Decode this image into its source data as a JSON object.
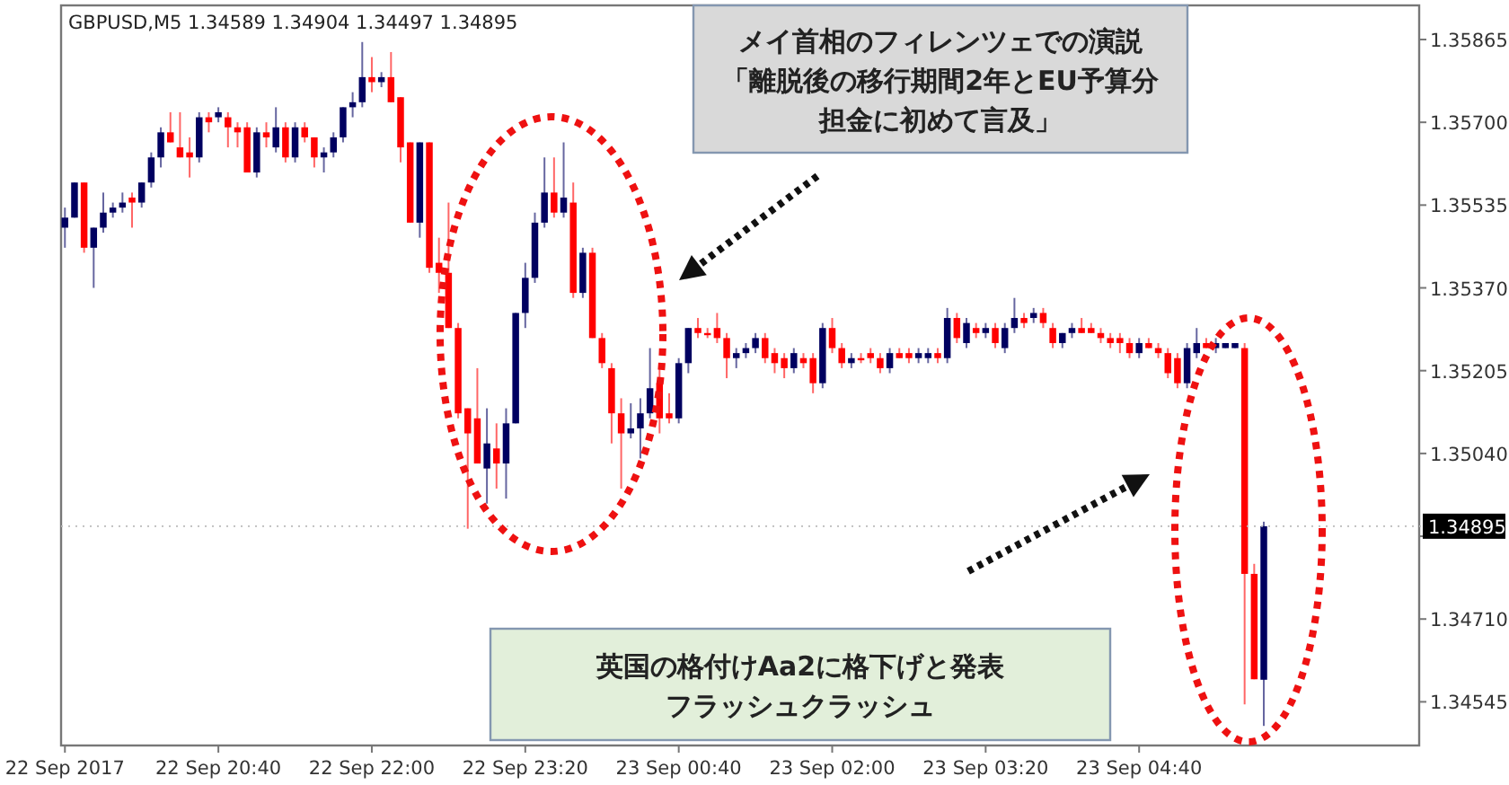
{
  "chart_data": {
    "type": "candlestick",
    "title": "GBPUSD,M5  1.34589 1.34904 1.34497 1.34895",
    "annotations": [
      "メイ首相のフィレンツェでの演説「離脱後の移行期間2年とEU予算分担金に初めて言及」",
      "英国の格付けAa2に格下げと発表フラッシュクラッシュ"
    ],
    "xlim": [
      "2017-09-22T19:18",
      "2017-09-23T07:06"
    ],
    "xticks": [
      {
        "value": "2017-09-22T19:20",
        "label": "22 Sep 2017"
      },
      {
        "value": "2017-09-22T20:40",
        "label": "22 Sep 20:40"
      },
      {
        "value": "2017-09-22T22:00",
        "label": "22 Sep 22:00"
      },
      {
        "value": "2017-09-22T23:20",
        "label": "22 Sep 23:20"
      },
      {
        "value": "2017-09-23T00:40",
        "label": "23 Sep 00:40"
      },
      {
        "value": "2017-09-23T02:00",
        "label": "23 Sep 02:00"
      },
      {
        "value": "2017-09-23T03:20",
        "label": "23 Sep 03:20"
      },
      {
        "value": "2017-09-23T04:40",
        "label": "23 Sep 04:40"
      }
    ],
    "ylim": [
      1.34458,
      1.35933
    ],
    "yticks": [
      {
        "value": 1.34545,
        "label": "1.34545"
      },
      {
        "value": 1.3471,
        "label": "1.34710"
      },
      {
        "value": 1.34875,
        "label": null
      },
      {
        "value": 1.3504,
        "label": "1.35040"
      },
      {
        "value": 1.35205,
        "label": "1.35205"
      },
      {
        "value": 1.3537,
        "label": "1.35370"
      },
      {
        "value": 1.35535,
        "label": "1.35535"
      },
      {
        "value": 1.357,
        "label": "1.35700"
      },
      {
        "value": 1.35865,
        "label": "1.35865"
      }
    ],
    "ref_lines": [
      {
        "axis": "y",
        "value": 1.34895,
        "label": "1.34895",
        "color": "#bbbbbb",
        "line_style": "dotted"
      }
    ],
    "x": [
      "2017-09-22T19:20",
      "2017-09-22T19:25",
      "2017-09-22T19:30",
      "2017-09-22T19:35",
      "2017-09-22T19:40",
      "2017-09-22T19:45",
      "2017-09-22T19:50",
      "2017-09-22T19:55",
      "2017-09-22T20:00",
      "2017-09-22T20:05",
      "2017-09-22T20:10",
      "2017-09-22T20:15",
      "2017-09-22T20:20",
      "2017-09-22T20:25",
      "2017-09-22T20:30",
      "2017-09-22T20:35",
      "2017-09-22T20:40",
      "2017-09-22T20:45",
      "2017-09-22T20:50",
      "2017-09-22T20:55",
      "2017-09-22T21:00",
      "2017-09-22T21:05",
      "2017-09-22T21:10",
      "2017-09-22T21:15",
      "2017-09-22T21:20",
      "2017-09-22T21:25",
      "2017-09-22T21:30",
      "2017-09-22T21:35",
      "2017-09-22T21:40",
      "2017-09-22T21:45",
      "2017-09-22T21:50",
      "2017-09-22T21:55",
      "2017-09-22T22:00",
      "2017-09-22T22:05",
      "2017-09-22T22:10",
      "2017-09-22T22:15",
      "2017-09-22T22:20",
      "2017-09-22T22:25",
      "2017-09-22T22:30",
      "2017-09-22T22:35",
      "2017-09-22T22:40",
      "2017-09-22T22:45",
      "2017-09-22T22:50",
      "2017-09-22T22:55",
      "2017-09-22T23:00",
      "2017-09-22T23:05",
      "2017-09-22T23:10",
      "2017-09-22T23:15",
      "2017-09-22T23:20",
      "2017-09-22T23:25",
      "2017-09-22T23:30",
      "2017-09-22T23:35",
      "2017-09-22T23:40",
      "2017-09-22T23:45",
      "2017-09-22T23:50",
      "2017-09-22T23:55",
      "2017-09-23T00:00",
      "2017-09-23T00:05",
      "2017-09-23T00:10",
      "2017-09-23T00:15",
      "2017-09-23T00:20",
      "2017-09-23T00:25",
      "2017-09-23T00:30",
      "2017-09-23T00:35",
      "2017-09-23T00:40",
      "2017-09-23T00:45",
      "2017-09-23T00:50",
      "2017-09-23T00:55",
      "2017-09-23T01:00",
      "2017-09-23T01:05",
      "2017-09-23T01:10",
      "2017-09-23T01:15",
      "2017-09-23T01:20",
      "2017-09-23T01:25",
      "2017-09-23T01:30",
      "2017-09-23T01:35",
      "2017-09-23T01:40",
      "2017-09-23T01:45",
      "2017-09-23T01:50",
      "2017-09-23T01:55",
      "2017-09-23T02:00",
      "2017-09-23T02:05",
      "2017-09-23T02:10",
      "2017-09-23T02:15",
      "2017-09-23T02:20",
      "2017-09-23T02:25",
      "2017-09-23T02:30",
      "2017-09-23T02:35",
      "2017-09-23T02:40",
      "2017-09-23T02:45",
      "2017-09-23T02:50",
      "2017-09-23T02:55",
      "2017-09-23T03:00",
      "2017-09-23T03:05",
      "2017-09-23T03:10",
      "2017-09-23T03:15",
      "2017-09-23T03:20",
      "2017-09-23T03:25",
      "2017-09-23T03:30",
      "2017-09-23T03:35",
      "2017-09-23T03:40",
      "2017-09-23T03:45",
      "2017-09-23T03:50",
      "2017-09-23T03:55",
      "2017-09-23T04:00",
      "2017-09-23T04:05",
      "2017-09-23T04:10",
      "2017-09-23T04:15",
      "2017-09-23T04:20",
      "2017-09-23T04:25",
      "2017-09-23T04:30",
      "2017-09-23T04:35",
      "2017-09-23T04:40",
      "2017-09-23T04:45",
      "2017-09-23T04:50",
      "2017-09-23T04:55",
      "2017-09-23T05:00",
      "2017-09-23T05:05",
      "2017-09-23T05:10",
      "2017-09-23T05:15",
      "2017-09-23T05:20",
      "2017-09-23T05:25",
      "2017-09-23T05:30",
      "2017-09-23T05:35",
      "2017-09-23T05:40",
      "2017-09-23T05:45"
    ],
    "ohlc": [
      [
        1.3549,
        1.3553,
        1.3545,
        1.3551
      ],
      [
        1.3551,
        1.3558,
        1.3551,
        1.3558
      ],
      [
        1.3558,
        1.3558,
        1.3544,
        1.3545
      ],
      [
        1.3545,
        1.3549,
        1.3537,
        1.3549
      ],
      [
        1.3549,
        1.3556,
        1.3548,
        1.3552
      ],
      [
        1.3552,
        1.3554,
        1.3551,
        1.3553
      ],
      [
        1.3553,
        1.3556,
        1.3552,
        1.3554
      ],
      [
        1.3555,
        1.3556,
        1.3549,
        1.3554
      ],
      [
        1.3554,
        1.3558,
        1.3553,
        1.3558
      ],
      [
        1.3558,
        1.3564,
        1.3557,
        1.3563
      ],
      [
        1.3563,
        1.3569,
        1.3561,
        1.3568
      ],
      [
        1.3568,
        1.3572,
        1.3566,
        1.3566
      ],
      [
        1.3565,
        1.3572,
        1.3563,
        1.3563
      ],
      [
        1.3564,
        1.3567,
        1.3559,
        1.3563
      ],
      [
        1.3563,
        1.3572,
        1.3562,
        1.3571
      ],
      [
        1.3571,
        1.3572,
        1.3568,
        1.357
      ],
      [
        1.3571,
        1.3573,
        1.357,
        1.3572
      ],
      [
        1.3571,
        1.3572,
        1.3565,
        1.3569
      ],
      [
        1.3569,
        1.357,
        1.3565,
        1.3568
      ],
      [
        1.3569,
        1.357,
        1.356,
        1.356
      ],
      [
        1.356,
        1.3569,
        1.3559,
        1.3568
      ],
      [
        1.3568,
        1.357,
        1.3565,
        1.3567
      ],
      [
        1.3565,
        1.3573,
        1.3564,
        1.3569
      ],
      [
        1.3569,
        1.357,
        1.3562,
        1.3563
      ],
      [
        1.3563,
        1.357,
        1.3562,
        1.3569
      ],
      [
        1.3569,
        1.357,
        1.3566,
        1.3567
      ],
      [
        1.3567,
        1.3567,
        1.3561,
        1.3563
      ],
      [
        1.3563,
        1.3565,
        1.356,
        1.3564
      ],
      [
        1.3564,
        1.3568,
        1.3563,
        1.3567
      ],
      [
        1.3567,
        1.3573,
        1.3566,
        1.3573
      ],
      [
        1.3573,
        1.3576,
        1.3571,
        1.3574
      ],
      [
        1.3574,
        1.3586,
        1.3573,
        1.3579
      ],
      [
        1.3579,
        1.3583,
        1.3576,
        1.3578
      ],
      [
        1.3578,
        1.358,
        1.3577,
        1.3579
      ],
      [
        1.3579,
        1.3584,
        1.3574,
        1.3574
      ],
      [
        1.3575,
        1.3575,
        1.3562,
        1.3565
      ],
      [
        1.3566,
        1.3566,
        1.355,
        1.355
      ],
      [
        1.355,
        1.3566,
        1.3547,
        1.3566
      ],
      [
        1.3566,
        1.3566,
        1.354,
        1.3541
      ],
      [
        1.3542,
        1.3547,
        1.3536,
        1.354
      ],
      [
        1.354,
        1.3554,
        1.3529,
        1.3529
      ],
      [
        1.3529,
        1.353,
        1.3511,
        1.3512
      ],
      [
        1.3513,
        1.3513,
        1.3489,
        1.3508
      ],
      [
        1.3511,
        1.3521,
        1.3502,
        1.3502
      ],
      [
        1.3501,
        1.3513,
        1.3494,
        1.3506
      ],
      [
        1.3505,
        1.351,
        1.3497,
        1.3502
      ],
      [
        1.3502,
        1.3513,
        1.3495,
        1.351
      ],
      [
        1.351,
        1.3532,
        1.351,
        1.3532
      ],
      [
        1.3532,
        1.3542,
        1.3529,
        1.3539
      ],
      [
        1.3539,
        1.3552,
        1.3538,
        1.355
      ],
      [
        1.355,
        1.3563,
        1.3549,
        1.3556
      ],
      [
        1.3556,
        1.3563,
        1.3551,
        1.3552
      ],
      [
        1.3552,
        1.3566,
        1.3551,
        1.3555
      ],
      [
        1.3554,
        1.3558,
        1.3535,
        1.3536
      ],
      [
        1.3536,
        1.3545,
        1.3535,
        1.3544
      ],
      [
        1.3544,
        1.3545,
        1.3527,
        1.3527
      ],
      [
        1.3527,
        1.3528,
        1.3521,
        1.3522
      ],
      [
        1.3521,
        1.3522,
        1.3506,
        1.3512
      ],
      [
        1.3512,
        1.3515,
        1.3497,
        1.3508
      ],
      [
        1.3508,
        1.3514,
        1.3507,
        1.3509
      ],
      [
        1.3509,
        1.3515,
        1.3503,
        1.3512
      ],
      [
        1.3512,
        1.3525,
        1.3511,
        1.3517
      ],
      [
        1.3518,
        1.3521,
        1.3508,
        1.3511
      ],
      [
        1.3512,
        1.3516,
        1.351,
        1.3511
      ],
      [
        1.3511,
        1.3523,
        1.351,
        1.3522
      ],
      [
        1.3522,
        1.3529,
        1.352,
        1.3529
      ],
      [
        1.3529,
        1.3531,
        1.3527,
        1.3528
      ],
      [
        1.3528,
        1.3529,
        1.3527,
        1.3528
      ],
      [
        1.3529,
        1.3532,
        1.3526,
        1.3527
      ],
      [
        1.3527,
        1.3528,
        1.3519,
        1.3523
      ],
      [
        1.3523,
        1.3525,
        1.3521,
        1.3524
      ],
      [
        1.3524,
        1.3526,
        1.3523,
        1.3525
      ],
      [
        1.3525,
        1.3528,
        1.3524,
        1.3527
      ],
      [
        1.3527,
        1.3528,
        1.3522,
        1.3523
      ],
      [
        1.3524,
        1.3525,
        1.352,
        1.3522
      ],
      [
        1.3523,
        1.3524,
        1.3519,
        1.3521
      ],
      [
        1.3521,
        1.3525,
        1.352,
        1.3524
      ],
      [
        1.3523,
        1.3524,
        1.3521,
        1.3522
      ],
      [
        1.3523,
        1.3524,
        1.3516,
        1.3518
      ],
      [
        1.3518,
        1.353,
        1.3517,
        1.3529
      ],
      [
        1.3529,
        1.3531,
        1.3524,
        1.3525
      ],
      [
        1.3525,
        1.3526,
        1.3521,
        1.3522
      ],
      [
        1.3522,
        1.3524,
        1.3521,
        1.3523
      ],
      [
        1.3523,
        1.3524,
        1.3522,
        1.3523
      ],
      [
        1.3524,
        1.3525,
        1.3522,
        1.3523
      ],
      [
        1.3523,
        1.3524,
        1.352,
        1.3521
      ],
      [
        1.3521,
        1.3525,
        1.352,
        1.3524
      ],
      [
        1.3524,
        1.3525,
        1.3523,
        1.3523
      ],
      [
        1.3524,
        1.3525,
        1.3522,
        1.3523
      ],
      [
        1.3523,
        1.3525,
        1.3522,
        1.3524
      ],
      [
        1.3523,
        1.3525,
        1.3522,
        1.3524
      ],
      [
        1.3524,
        1.3525,
        1.3522,
        1.3523
      ],
      [
        1.3523,
        1.3533,
        1.3522,
        1.3531
      ],
      [
        1.3531,
        1.3532,
        1.3526,
        1.3527
      ],
      [
        1.3526,
        1.3531,
        1.3525,
        1.353
      ],
      [
        1.3529,
        1.353,
        1.3527,
        1.3528
      ],
      [
        1.3528,
        1.353,
        1.3527,
        1.3529
      ],
      [
        1.3529,
        1.353,
        1.3525,
        1.3526
      ],
      [
        1.3525,
        1.353,
        1.3524,
        1.3529
      ],
      [
        1.3529,
        1.3535,
        1.3528,
        1.3531
      ],
      [
        1.3531,
        1.3532,
        1.3529,
        1.353
      ],
      [
        1.3531,
        1.3533,
        1.353,
        1.3532
      ],
      [
        1.3532,
        1.3533,
        1.3529,
        1.353
      ],
      [
        1.3529,
        1.353,
        1.3525,
        1.3526
      ],
      [
        1.3526,
        1.3528,
        1.3525,
        1.3528
      ],
      [
        1.3528,
        1.353,
        1.3527,
        1.3529
      ],
      [
        1.3529,
        1.3531,
        1.3528,
        1.3528
      ],
      [
        1.3529,
        1.353,
        1.3528,
        1.3528
      ],
      [
        1.3528,
        1.3529,
        1.3526,
        1.3527
      ],
      [
        1.3527,
        1.3528,
        1.3525,
        1.3526
      ],
      [
        1.3527,
        1.3528,
        1.3524,
        1.3526
      ],
      [
        1.3526,
        1.3527,
        1.3523,
        1.3524
      ],
      [
        1.3524,
        1.3527,
        1.3523,
        1.3526
      ],
      [
        1.3526,
        1.3527,
        1.3525,
        1.3525
      ],
      [
        1.3525,
        1.3526,
        1.3523,
        1.3524
      ],
      [
        1.3524,
        1.3525,
        1.3519,
        1.352
      ],
      [
        1.3523,
        1.3524,
        1.3517,
        1.3518
      ],
      [
        1.3518,
        1.3526,
        1.3517,
        1.3525
      ],
      [
        1.3524,
        1.3529,
        1.3523,
        1.3526
      ],
      [
        1.3526,
        1.3527,
        1.3525,
        1.3525
      ],
      [
        1.3525,
        1.3527,
        1.3524,
        1.3526
      ],
      [
        1.3525,
        1.3526,
        1.3525,
        1.3526
      ],
      [
        1.3525,
        1.3526,
        1.3525,
        1.3526
      ],
      [
        1.3525,
        1.3526,
        1.3454,
        1.348
      ],
      [
        1.348,
        1.3482,
        1.3459,
        1.3459
      ],
      [
        1.34589,
        1.34904,
        1.34497,
        1.34895
      ]
    ],
    "colors": [
      "#000060",
      "#000060",
      "#ff0000",
      "#000060",
      "#000060",
      "#000060",
      "#000060",
      "#ff0000",
      "#000060",
      "#000060",
      "#000060",
      "#ff0000",
      "#ff0000",
      "#ff0000",
      "#000060",
      "#ff0000",
      "#000060",
      "#ff0000",
      "#ff0000",
      "#ff0000",
      "#000060",
      "#ff0000",
      "#000060",
      "#ff0000",
      "#000060",
      "#ff0000",
      "#ff0000",
      "#000060",
      "#000060",
      "#000060",
      "#000060",
      "#000060",
      "#ff0000",
      "#000060",
      "#ff0000",
      "#ff0000",
      "#ff0000",
      "#000060",
      "#ff0000",
      "#ff0000",
      "#ff0000",
      "#ff0000",
      "#ff0000",
      "#ff0000",
      "#000060",
      "#ff0000",
      "#000060",
      "#000060",
      "#000060",
      "#000060",
      "#000060",
      "#ff0000",
      "#000060",
      "#ff0000",
      "#000060",
      "#ff0000",
      "#ff0000",
      "#ff0000",
      "#ff0000",
      "#000060",
      "#000060",
      "#000060",
      "#ff0000",
      "#ff0000",
      "#000060",
      "#000060",
      "#ff0000",
      "#ff0000",
      "#ff0000",
      "#ff0000",
      "#000060",
      "#000060",
      "#000060",
      "#ff0000",
      "#ff0000",
      "#ff0000",
      "#000060",
      "#ff0000",
      "#ff0000",
      "#000060",
      "#ff0000",
      "#ff0000",
      "#000060",
      "#ff0000",
      "#ff0000",
      "#ff0000",
      "#000060",
      "#ff0000",
      "#ff0000",
      "#000060",
      "#000060",
      "#ff0000",
      "#000060",
      "#ff0000",
      "#000060",
      "#ff0000",
      "#000060",
      "#ff0000",
      "#000060",
      "#000060",
      "#ff0000",
      "#000060",
      "#ff0000",
      "#ff0000",
      "#000060",
      "#000060",
      "#ff0000",
      "#ff0000",
      "#ff0000",
      "#ff0000",
      "#ff0000",
      "#ff0000",
      "#000060",
      "#ff0000",
      "#ff0000",
      "#ff0000",
      "#ff0000",
      "#000060",
      "#000060",
      "#ff0000",
      "#000060",
      "#000060",
      "#000060",
      "#ff0000",
      "#ff0000",
      "#000060"
    ]
  }
}
